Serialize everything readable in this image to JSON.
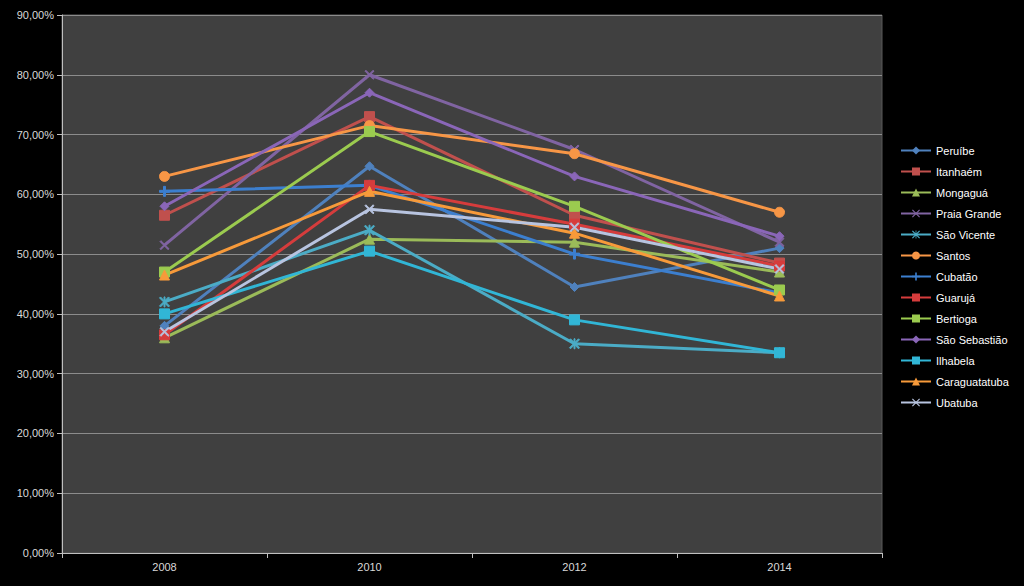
{
  "chart_data": {
    "type": "line",
    "categories": [
      "2008",
      "2010",
      "2012",
      "2014"
    ],
    "ylim": [
      0,
      90
    ],
    "yticks": [
      {
        "value": 0,
        "label": "0,00%"
      },
      {
        "value": 10,
        "label": "10,00%"
      },
      {
        "value": 20,
        "label": "20,00%"
      },
      {
        "value": 30,
        "label": "30,00%"
      },
      {
        "value": 40,
        "label": "40,00%"
      },
      {
        "value": 50,
        "label": "50,00%"
      },
      {
        "value": 60,
        "label": "60,00%"
      },
      {
        "value": 70,
        "label": "70,00%"
      },
      {
        "value": 80,
        "label": "80,00%"
      },
      {
        "value": 90,
        "label": "90,00%"
      }
    ],
    "grid": true,
    "legend": "right",
    "series": [
      {
        "name": "Peruíbe",
        "color": "#4F81BD",
        "marker": "diamond",
        "values": [
          38,
          64.7,
          44.5,
          51
        ]
      },
      {
        "name": "Itanhaém",
        "color": "#C0504D",
        "marker": "square",
        "values": [
          56.5,
          73,
          56.5,
          48.5
        ]
      },
      {
        "name": "Mongaguá",
        "color": "#9BBB59",
        "marker": "triangle",
        "values": [
          36,
          52.5,
          52,
          47
        ]
      },
      {
        "name": "Praia Grande",
        "color": "#8064A2",
        "marker": "x",
        "values": [
          51.5,
          80,
          67.5,
          52
        ]
      },
      {
        "name": "São Vicente",
        "color": "#4BACC6",
        "marker": "star",
        "values": [
          42,
          54,
          35,
          33.5
        ]
      },
      {
        "name": "Santos",
        "color": "#F79646",
        "marker": "circle",
        "values": [
          63,
          71.5,
          66.8,
          57
        ]
      },
      {
        "name": "Cubatão",
        "color": "#3C7FCF",
        "marker": "plus",
        "values": [
          60.5,
          61.5,
          50,
          43.5
        ]
      },
      {
        "name": "Guarujá",
        "color": "#D63C3C",
        "marker": "dash",
        "values": [
          36.5,
          61.5,
          55,
          48
        ]
      },
      {
        "name": "Bertioga",
        "color": "#9BCB4F",
        "marker": "dash",
        "values": [
          47,
          70.5,
          58,
          44
        ]
      },
      {
        "name": "São Sebastião",
        "color": "#8A66B8",
        "marker": "diamond",
        "values": [
          58,
          77,
          63,
          53
        ]
      },
      {
        "name": "Ilhabela",
        "color": "#31B6D6",
        "marker": "square",
        "values": [
          40,
          50.5,
          39,
          33.5
        ]
      },
      {
        "name": "Caraguatatuba",
        "color": "#F79A3A",
        "marker": "triangle",
        "values": [
          46.5,
          60.5,
          53.5,
          43
        ]
      },
      {
        "name": "Ubatuba",
        "color": "#B8C4E0",
        "marker": "x",
        "values": [
          37,
          57.5,
          54.5,
          47.5
        ]
      }
    ]
  }
}
